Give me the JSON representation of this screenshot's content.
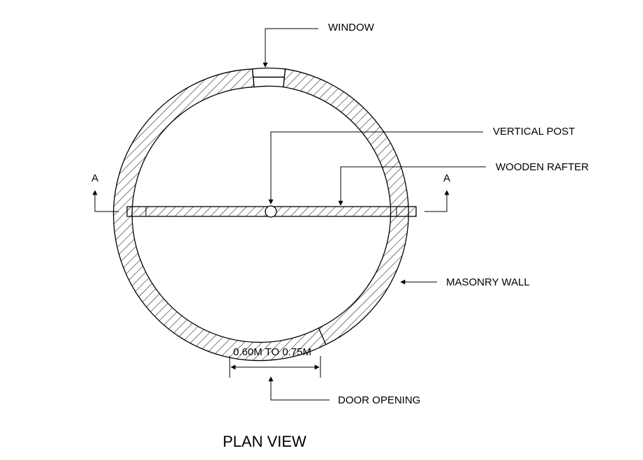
{
  "drawing": {
    "labels": {
      "window": "WINDOW",
      "vertical_post": "VERTICAL POST",
      "wooden_rafter": "WOODEN RAFTER",
      "masonry_wall": "MASONRY WALL",
      "door_opening": "DOOR OPENING",
      "door_width": "0.60M TO 0.75M",
      "section_left": "A",
      "section_right": "A",
      "title": "PLAN VIEW"
    },
    "colors": {
      "line": "#000000",
      "background": "#ffffff"
    }
  }
}
